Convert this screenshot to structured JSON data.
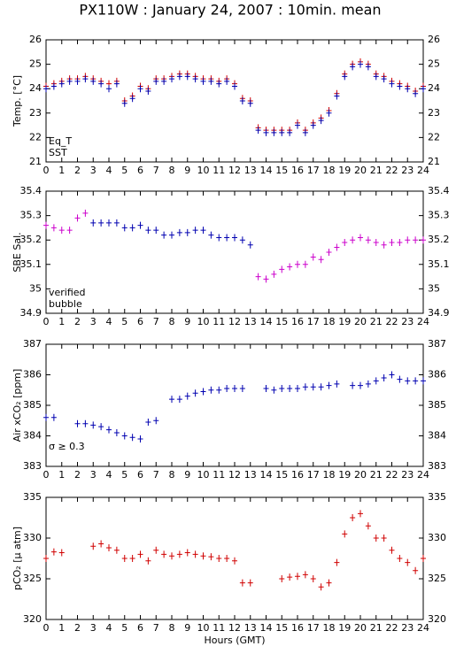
{
  "chart_data": [
    {
      "type": "scatter",
      "title": "PX110W : January 24, 2007 : 10min. mean",
      "ylabel": "Temp. [°C]",
      "x": [
        0,
        0.5,
        1,
        1.5,
        2,
        2.5,
        3,
        3.5,
        4,
        4.5,
        5,
        5.5,
        6,
        6.5,
        7,
        7.5,
        8,
        8.5,
        9,
        9.5,
        10,
        10.5,
        11,
        11.5,
        12,
        12.5,
        13,
        13.5,
        14,
        14.5,
        15,
        15.5,
        16,
        16.5,
        17,
        17.5,
        18,
        18.5,
        19,
        19.5,
        20,
        20.5,
        21,
        21.5,
        22,
        22.5,
        23,
        23.5,
        24
      ],
      "series": [
        {
          "name": "Eq_T",
          "color": "#d00000",
          "values": [
            24.1,
            24.2,
            24.3,
            24.4,
            24.4,
            24.5,
            24.4,
            24.3,
            24.2,
            24.3,
            23.5,
            23.7,
            24.1,
            24.0,
            24.4,
            24.4,
            24.5,
            24.6,
            24.6,
            24.5,
            24.4,
            24.4,
            24.3,
            24.4,
            24.2,
            23.6,
            23.5,
            22.4,
            22.3,
            22.3,
            22.3,
            22.3,
            22.6,
            22.3,
            22.6,
            22.8,
            23.1,
            23.8,
            24.6,
            25.0,
            25.1,
            25.0,
            24.6,
            24.5,
            24.3,
            24.2,
            24.1,
            23.9,
            24.1
          ]
        },
        {
          "name": "SST",
          "color": "#0000b0",
          "values": [
            24.0,
            24.1,
            24.2,
            24.3,
            24.3,
            24.4,
            24.3,
            24.2,
            24.0,
            24.2,
            23.4,
            23.6,
            24.0,
            23.9,
            24.3,
            24.3,
            24.4,
            24.5,
            24.5,
            24.4,
            24.3,
            24.3,
            24.2,
            24.3,
            24.1,
            23.5,
            23.4,
            22.3,
            22.2,
            22.2,
            22.2,
            22.2,
            22.5,
            22.2,
            22.5,
            22.7,
            23.0,
            23.7,
            24.5,
            24.9,
            25.0,
            24.9,
            24.5,
            24.4,
            24.2,
            24.1,
            24.0,
            23.8,
            24.0
          ]
        }
      ],
      "xlim": [
        0,
        24
      ],
      "xticks": [
        0,
        1,
        2,
        3,
        4,
        5,
        6,
        7,
        8,
        9,
        10,
        11,
        12,
        13,
        14,
        15,
        16,
        17,
        18,
        19,
        20,
        21,
        22,
        23,
        24
      ],
      "ylim": [
        21,
        26
      ],
      "yticks": [
        21,
        22,
        23,
        24,
        25,
        26
      ]
    },
    {
      "type": "scatter",
      "ylabel": "SBE Sal.",
      "x": [
        0,
        0.5,
        1,
        1.5,
        2,
        2.5,
        3,
        3.5,
        4,
        4.5,
        5,
        5.5,
        6,
        6.5,
        7,
        7.5,
        8,
        8.5,
        9,
        9.5,
        10,
        10.5,
        11,
        11.5,
        12,
        12.5,
        13,
        13.5,
        14,
        14.5,
        15,
        15.5,
        16,
        16.5,
        17,
        17.5,
        18,
        18.5,
        19,
        19.5,
        20,
        20.5,
        21,
        21.5,
        22,
        22.5,
        23,
        23.5,
        24
      ],
      "series": [
        {
          "name": "verified",
          "color": "#0000b0",
          "values": [
            null,
            null,
            null,
            null,
            null,
            null,
            35.27,
            35.27,
            35.27,
            35.27,
            35.25,
            35.25,
            35.26,
            35.24,
            35.24,
            35.22,
            35.22,
            35.23,
            35.23,
            35.24,
            35.24,
            35.22,
            35.21,
            35.21,
            35.21,
            35.2,
            35.18,
            null,
            null,
            null,
            null,
            null,
            null,
            null,
            null,
            null,
            null,
            null,
            null,
            null,
            null,
            null,
            null,
            null,
            null,
            null,
            null,
            null,
            null
          ]
        },
        {
          "name": "bubble",
          "color": "#cc00cc",
          "values": [
            35.26,
            35.25,
            35.24,
            35.24,
            35.29,
            35.31,
            null,
            null,
            null,
            null,
            null,
            null,
            null,
            null,
            null,
            null,
            null,
            null,
            null,
            null,
            null,
            null,
            null,
            null,
            null,
            null,
            null,
            35.05,
            35.04,
            35.06,
            35.08,
            35.09,
            35.1,
            35.1,
            35.13,
            35.12,
            35.15,
            35.17,
            35.19,
            35.2,
            35.21,
            35.2,
            35.19,
            35.18,
            35.19,
            35.19,
            35.2,
            35.2,
            35.2
          ]
        }
      ],
      "xlim": [
        0,
        24
      ],
      "xticks": [
        0,
        1,
        2,
        3,
        4,
        5,
        6,
        7,
        8,
        9,
        10,
        11,
        12,
        13,
        14,
        15,
        16,
        17,
        18,
        19,
        20,
        21,
        22,
        23,
        24
      ],
      "ylim": [
        34.9,
        35.4
      ],
      "yticks": [
        34.9,
        35,
        35.1,
        35.2,
        35.3,
        35.4
      ]
    },
    {
      "type": "scatter",
      "ylabel": "Air xCO₂ [ppm]",
      "annotations": [
        "σ ≥ 0.3"
      ],
      "annotation_color": "#cc00cc",
      "x": [
        0,
        0.5,
        1,
        1.5,
        2,
        2.5,
        3,
        3.5,
        4,
        4.5,
        5,
        5.5,
        6,
        6.5,
        7,
        7.5,
        8,
        8.5,
        9,
        9.5,
        10,
        10.5,
        11,
        11.5,
        12,
        12.5,
        13,
        13.5,
        14,
        14.5,
        15,
        15.5,
        16,
        16.5,
        17,
        17.5,
        18,
        18.5,
        19,
        19.5,
        20,
        20.5,
        21,
        21.5,
        22,
        22.5,
        23,
        23.5,
        24
      ],
      "values": [
        384.6,
        384.6,
        null,
        null,
        384.4,
        384.4,
        384.35,
        384.3,
        384.2,
        384.1,
        384.0,
        383.95,
        383.9,
        384.45,
        384.5,
        null,
        385.2,
        385.2,
        385.3,
        385.4,
        385.45,
        385.5,
        385.5,
        385.55,
        385.55,
        385.55,
        null,
        null,
        385.55,
        385.5,
        385.55,
        385.55,
        385.55,
        385.6,
        385.6,
        385.6,
        385.65,
        385.7,
        null,
        385.65,
        385.65,
        385.7,
        385.8,
        385.9,
        386.0,
        385.85,
        385.8,
        385.8,
        385.8
      ],
      "color": "#0000b0",
      "xlim": [
        0,
        24
      ],
      "xticks": [
        0,
        1,
        2,
        3,
        4,
        5,
        6,
        7,
        8,
        9,
        10,
        11,
        12,
        13,
        14,
        15,
        16,
        17,
        18,
        19,
        20,
        21,
        22,
        23,
        24
      ],
      "ylim": [
        383,
        387
      ],
      "yticks": [
        383,
        384,
        385,
        386,
        387
      ]
    },
    {
      "type": "scatter",
      "ylabel": "pCO₂ [μ atm]",
      "xlabel": "Hours (GMT)",
      "x": [
        0,
        0.5,
        1,
        1.5,
        2,
        2.5,
        3,
        3.5,
        4,
        4.5,
        5,
        5.5,
        6,
        6.5,
        7,
        7.5,
        8,
        8.5,
        9,
        9.5,
        10,
        10.5,
        11,
        11.5,
        12,
        12.5,
        13,
        13.5,
        14,
        14.5,
        15,
        15.5,
        16,
        16.5,
        17,
        17.5,
        18,
        18.5,
        19,
        19.5,
        20,
        20.5,
        21,
        21.5,
        22,
        22.5,
        23,
        23.5,
        24
      ],
      "values": [
        327.5,
        328.3,
        328.2,
        null,
        null,
        null,
        329,
        329.3,
        328.8,
        328.5,
        327.5,
        327.5,
        328,
        327.2,
        328.5,
        328,
        327.8,
        328,
        328.2,
        328,
        327.8,
        327.7,
        327.5,
        327.5,
        327.2,
        324.5,
        324.5,
        null,
        null,
        null,
        325,
        325.2,
        325.3,
        325.5,
        325,
        324,
        324.5,
        327,
        330.5,
        332.5,
        333,
        331.5,
        330,
        330,
        328.5,
        327.5,
        327,
        326,
        327.5
      ],
      "color": "#d00000",
      "xlim": [
        0,
        24
      ],
      "xticks": [
        0,
        1,
        2,
        3,
        4,
        5,
        6,
        7,
        8,
        9,
        10,
        11,
        12,
        13,
        14,
        15,
        16,
        17,
        18,
        19,
        20,
        21,
        22,
        23,
        24
      ],
      "ylim": [
        320,
        335
      ],
      "yticks": [
        320,
        325,
        330,
        335
      ]
    }
  ]
}
